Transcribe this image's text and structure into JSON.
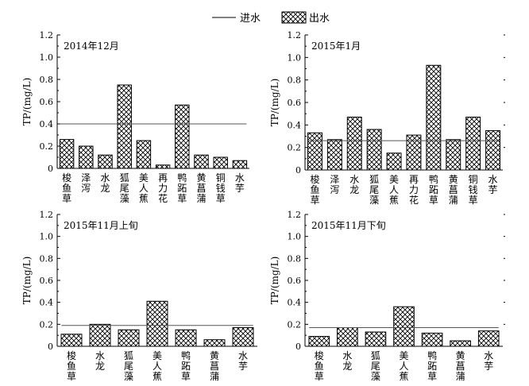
{
  "legend": {
    "inflow_label": "进水",
    "outflow_label": "出水"
  },
  "chart_data": [
    {
      "type": "bar",
      "title": "2014年12月",
      "ylabel": "TP/(mg/L)",
      "ylim": [
        0,
        1.2
      ],
      "yticks": [
        "0",
        "0.2",
        "0.4",
        "0.6",
        "0.8",
        "1.0",
        "1.2"
      ],
      "categories": [
        "梭鱼草",
        "泽泻",
        "水龙",
        "狐尾藻",
        "美人蕉",
        "再力花",
        "鸭跖草",
        "黄菖蒲",
        "铜钱草",
        "水芋"
      ],
      "series": [
        {
          "name": "出水",
          "values": [
            0.26,
            0.2,
            0.12,
            0.75,
            0.25,
            0.03,
            0.57,
            0.12,
            0.1,
            0.07
          ]
        },
        {
          "name": "进水",
          "values": [
            0.4,
            0.4,
            0.4,
            0.4,
            0.4,
            0.4,
            0.4,
            0.4,
            0.4,
            0.4
          ]
        }
      ]
    },
    {
      "type": "bar",
      "title": "2015年1月",
      "ylabel": "TP/(mg/L)",
      "ylim": [
        0,
        1.2
      ],
      "yticks": [
        "0",
        "0.2",
        "0.4",
        "0.6",
        "0.8",
        "1.0",
        "1.2"
      ],
      "categories": [
        "梭鱼草",
        "泽泻",
        "水龙",
        "狐尾藻",
        "美人蕉",
        "再力花",
        "鸭跖草",
        "黄菖蒲",
        "铜钱草",
        "水芋"
      ],
      "series": [
        {
          "name": "出水",
          "values": [
            0.33,
            0.27,
            0.47,
            0.36,
            0.15,
            0.31,
            0.93,
            0.27,
            0.47,
            0.35
          ]
        },
        {
          "name": "进水",
          "values": [
            0.26,
            0.26,
            0.26,
            0.26,
            0.26,
            0.26,
            0.26,
            0.26,
            0.26,
            0.26
          ]
        }
      ]
    },
    {
      "type": "bar",
      "title": "2015年11月上旬",
      "ylabel": "TP/(mg/L)",
      "ylim": [
        0,
        1.2
      ],
      "yticks": [
        "0",
        "0.2",
        "0.4",
        "0.6",
        "0.8",
        "1.0",
        "1.2"
      ],
      "categories": [
        "梭鱼草",
        "水龙",
        "狐尾藻",
        "美人蕉",
        "鸭跖草",
        "黄菖蒲",
        "水芋"
      ],
      "series": [
        {
          "name": "出水",
          "values": [
            0.11,
            0.2,
            0.15,
            0.41,
            0.15,
            0.06,
            0.17
          ]
        },
        {
          "name": "进水",
          "values": [
            0.19,
            0.19,
            0.19,
            0.19,
            0.19,
            0.19,
            0.19
          ]
        }
      ]
    },
    {
      "type": "bar",
      "title": "2015年11月下旬",
      "ylabel": "TP/(mg/L)",
      "ylim": [
        0,
        1.2
      ],
      "yticks": [
        "0",
        "0.2",
        "0.4",
        "0.6",
        "0.8",
        "1.0",
        "1.2"
      ],
      "categories": [
        "梭鱼草",
        "水龙",
        "狐尾藻",
        "美人蕉",
        "鸭跖草",
        "黄菖蒲",
        "水芋"
      ],
      "series": [
        {
          "name": "出水",
          "values": [
            0.09,
            0.17,
            0.13,
            0.36,
            0.12,
            0.05,
            0.14
          ]
        },
        {
          "name": "进水",
          "values": [
            0.17,
            0.17,
            0.17,
            0.17,
            0.17,
            0.17,
            0.17
          ]
        }
      ]
    }
  ]
}
